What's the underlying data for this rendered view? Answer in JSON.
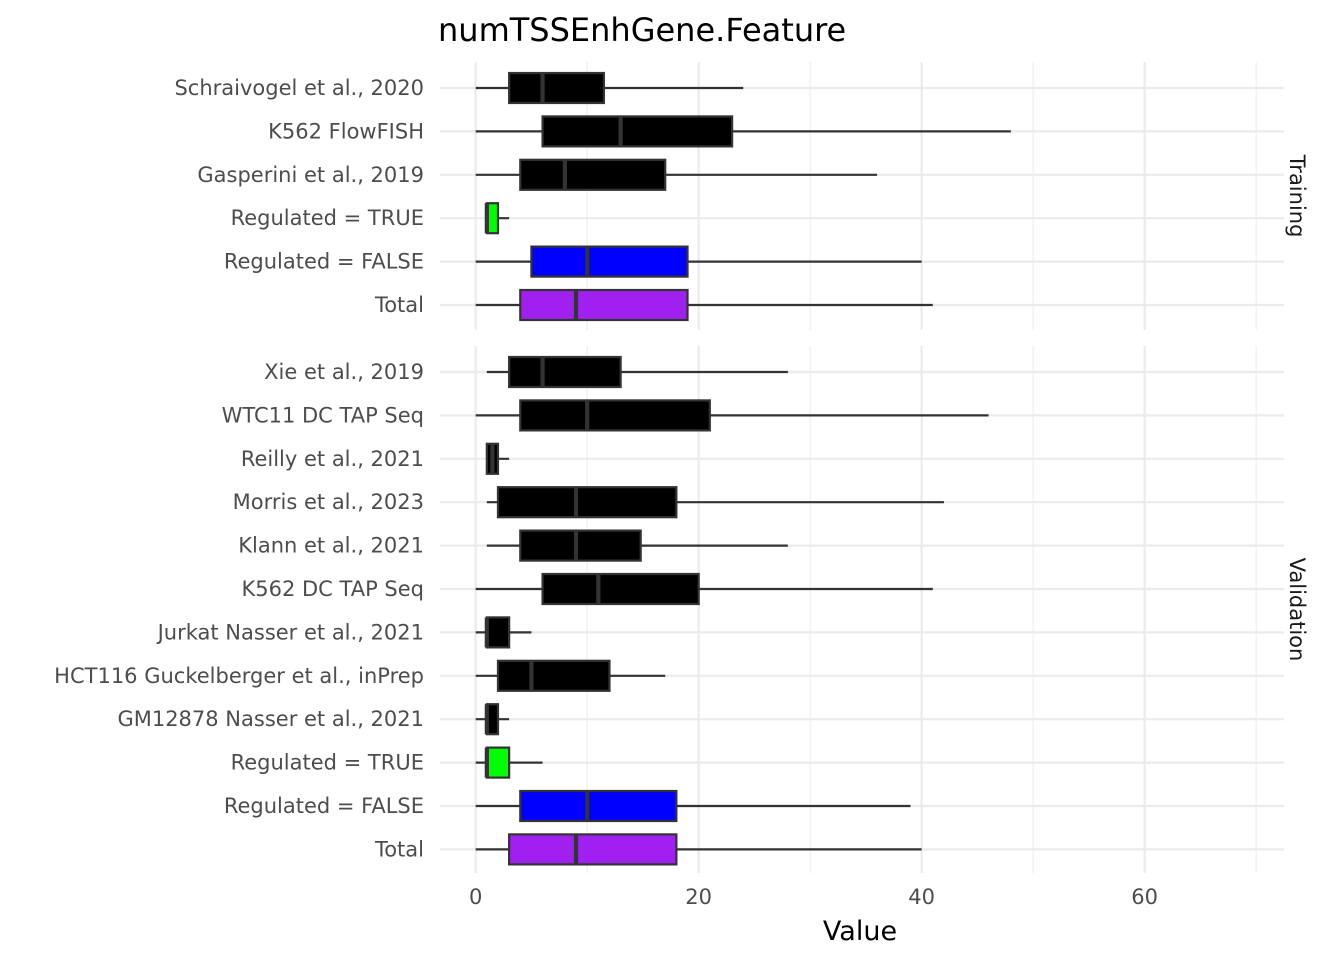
{
  "chart_data": {
    "type": "boxplot",
    "title": "numTSSEnhGene.Feature",
    "xlabel": "Value",
    "ylabel": "",
    "xlim": [
      -3.2,
      72.5
    ],
    "xticks": [
      0,
      20,
      40,
      60
    ],
    "xtick_labels": [
      "0",
      "20",
      "40",
      "60"
    ],
    "minor_xticks": [
      10,
      30,
      50,
      70
    ],
    "grid": true,
    "colors": {
      "dataset": "#000000",
      "regulated_true": "#00ff00",
      "regulated_false": "#0000ff",
      "total": "#a020f0",
      "box_border": "#333333",
      "grid": "#ebebeb"
    },
    "panels": [
      {
        "strip_label": "Training",
        "rows": [
          {
            "label": "Schraivogel et al., 2020",
            "min": 0,
            "q1": 3,
            "median": 6,
            "q3": 11.5,
            "max": 24,
            "color": "#000000"
          },
          {
            "label": "K562 FlowFISH",
            "min": 0,
            "q1": 6,
            "median": 13,
            "q3": 23,
            "max": 48,
            "color": "#000000"
          },
          {
            "label": "Gasperini et al., 2019",
            "min": 0,
            "q1": 4,
            "median": 8,
            "q3": 17,
            "max": 36,
            "color": "#000000"
          },
          {
            "label": "Regulated = TRUE",
            "min": 1,
            "q1": 1,
            "median": 1,
            "q3": 2,
            "max": 3,
            "color": "#00ff00"
          },
          {
            "label": "Regulated = FALSE",
            "min": 0,
            "q1": 5,
            "median": 10,
            "q3": 19,
            "max": 40,
            "color": "#0000ff"
          },
          {
            "label": "Total",
            "min": 0,
            "q1": 4,
            "median": 9,
            "q3": 19,
            "max": 41,
            "color": "#a020f0"
          }
        ]
      },
      {
        "strip_label": "Validation",
        "rows": [
          {
            "label": "Xie et al., 2019",
            "min": 1,
            "q1": 3,
            "median": 6,
            "q3": 13,
            "max": 28,
            "color": "#000000"
          },
          {
            "label": "WTC11 DC TAP Seq",
            "min": 0,
            "q1": 4,
            "median": 10,
            "q3": 21,
            "max": 46,
            "color": "#000000"
          },
          {
            "label": "Reilly et al., 2021",
            "min": 1,
            "q1": 1,
            "median": 1.5,
            "q3": 2,
            "max": 3,
            "color": "#000000"
          },
          {
            "label": "Morris et al., 2023",
            "min": 1,
            "q1": 2,
            "median": 9,
            "q3": 18,
            "max": 42,
            "color": "#000000"
          },
          {
            "label": "Klann et al., 2021",
            "min": 1,
            "q1": 4,
            "median": 9,
            "q3": 14.8,
            "max": 28,
            "color": "#000000"
          },
          {
            "label": "K562 DC TAP Seq",
            "min": 0,
            "q1": 6,
            "median": 11,
            "q3": 20,
            "max": 41,
            "color": "#000000"
          },
          {
            "label": "Jurkat Nasser et al., 2021",
            "min": 0,
            "q1": 1,
            "median": 1,
            "q3": 3,
            "max": 5,
            "color": "#000000"
          },
          {
            "label": "HCT116 Guckelberger et al., inPrep",
            "min": 0,
            "q1": 2,
            "median": 5,
            "q3": 12,
            "max": 17,
            "color": "#000000"
          },
          {
            "label": "GM12878 Nasser et al., 2021",
            "min": 0,
            "q1": 1,
            "median": 1,
            "q3": 2,
            "max": 3,
            "color": "#000000"
          },
          {
            "label": "Regulated = TRUE",
            "min": 0,
            "q1": 1,
            "median": 1,
            "q3": 3,
            "max": 6,
            "color": "#00ff00"
          },
          {
            "label": "Regulated = FALSE",
            "min": 0,
            "q1": 4,
            "median": 10,
            "q3": 18,
            "max": 39,
            "color": "#0000ff"
          },
          {
            "label": "Total",
            "min": 0,
            "q1": 3,
            "median": 9,
            "q3": 18,
            "max": 40,
            "color": "#a020f0"
          }
        ]
      }
    ]
  }
}
